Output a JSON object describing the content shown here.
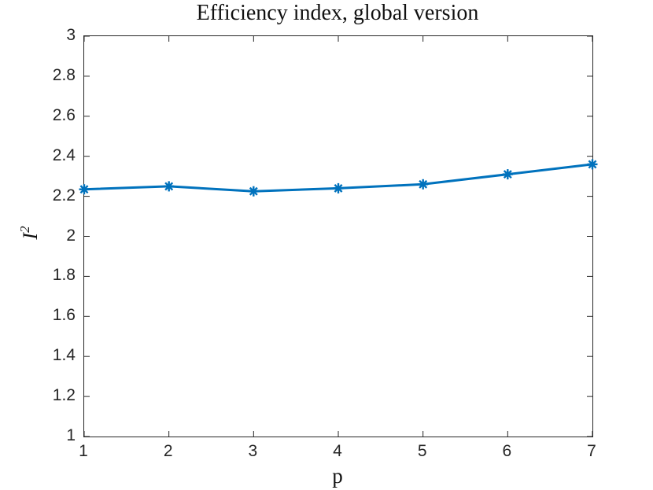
{
  "chart_data": {
    "type": "line",
    "title": "Efficiency index, global version",
    "xlabel": "p",
    "ylabel": "I^2",
    "ylabel_base": "I",
    "ylabel_sup": "2",
    "x": [
      1,
      2,
      3,
      4,
      5,
      6,
      7
    ],
    "series": [
      {
        "name": "efficiency-index",
        "values": [
          2.235,
          2.25,
          2.225,
          2.24,
          2.26,
          2.31,
          2.36
        ]
      }
    ],
    "xlim": [
      1,
      7
    ],
    "ylim": [
      1,
      3
    ],
    "xtick_values": [
      1,
      2,
      3,
      4,
      5,
      6,
      7
    ],
    "xtick_labels": [
      "1",
      "2",
      "3",
      "4",
      "5",
      "6",
      "7"
    ],
    "ytick_values": [
      1,
      1.2,
      1.4,
      1.6,
      1.8,
      2,
      2.2,
      2.4,
      2.6,
      2.8,
      3
    ],
    "ytick_labels": [
      "1",
      "1.2",
      "1.4",
      "1.6",
      "1.8",
      "2",
      "2.2",
      "2.4",
      "2.6",
      "2.8",
      "3"
    ],
    "grid": false,
    "legend": "none",
    "line_color": "#0072BD",
    "marker": "asterisk",
    "marker_color": "#0072BD",
    "axes_color": "#262626",
    "background_color": "#ffffff",
    "tick_direction": "in"
  }
}
